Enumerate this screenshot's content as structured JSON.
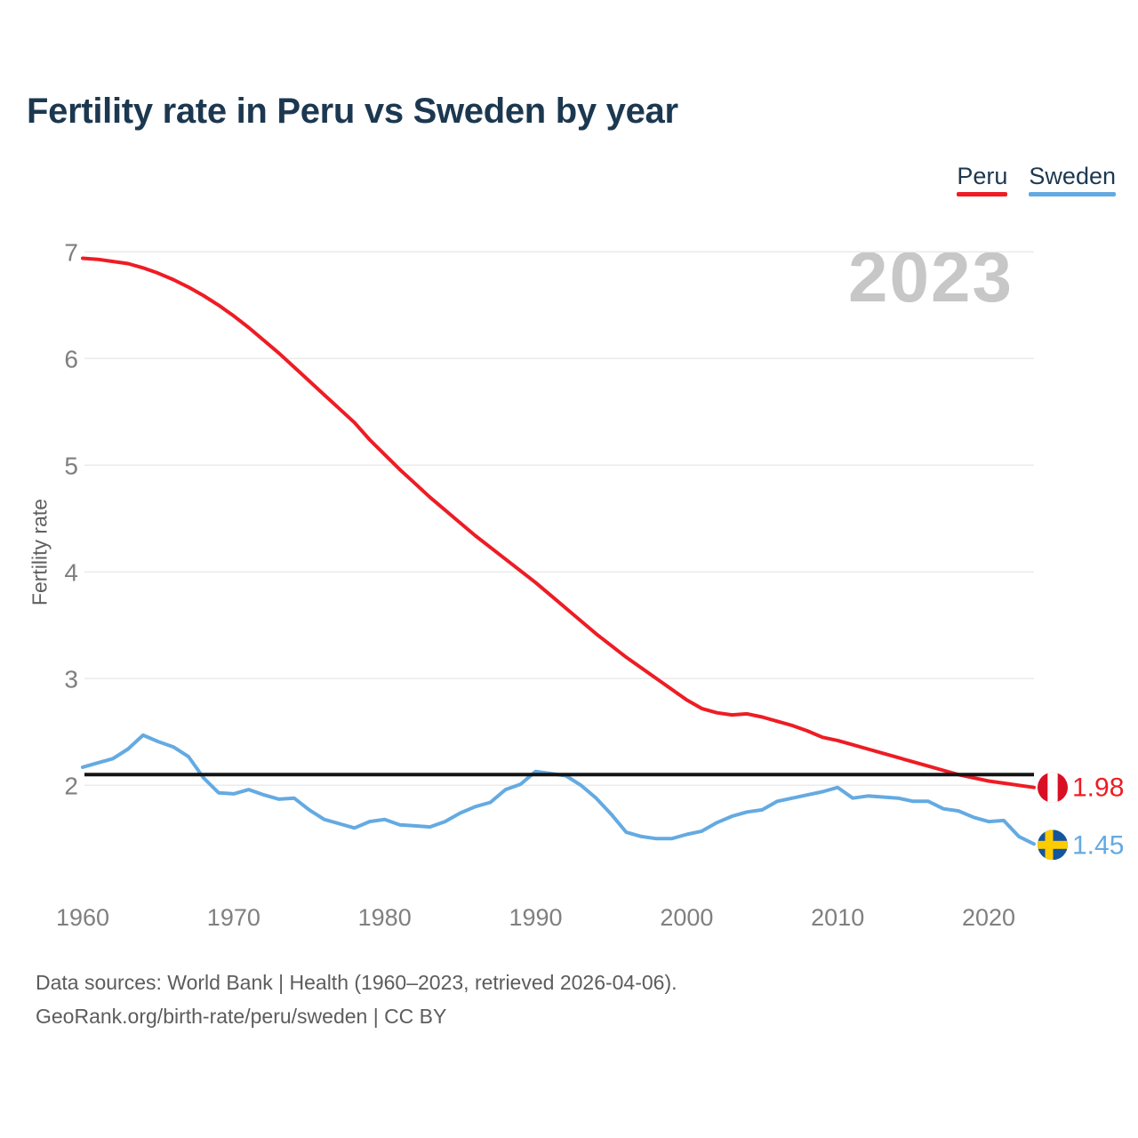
{
  "title": "Fertility rate in Peru vs Sweden by year",
  "watermark": "2023",
  "legend": {
    "items": [
      {
        "label": "Peru",
        "color": "#ee1c24"
      },
      {
        "label": "Sweden",
        "color": "#64aae2"
      }
    ]
  },
  "y_axis": {
    "label": "Fertility rate",
    "ticks": [
      2,
      3,
      4,
      5,
      6,
      7
    ]
  },
  "x_axis": {
    "ticks": [
      1960,
      1970,
      1980,
      1990,
      2000,
      2010,
      2020
    ]
  },
  "footer": {
    "line1": "Data sources: World Bank | Health (1960–2023, retrieved 2026-04-06).",
    "line2": "GeoRank.org/birth-rate/peru/sweden | CC BY"
  },
  "chart_data": {
    "type": "line",
    "title": "Fertility rate in Peru vs Sweden by year",
    "xlabel": "",
    "ylabel": "Fertility rate",
    "xlim": [
      1960,
      2023
    ],
    "ylim": [
      1,
      7
    ],
    "grid": "horizontal-only",
    "legend_position": "top-right",
    "reference_line": {
      "value": 2.1,
      "color": "#141414",
      "meaning": "drawn as plain black horizontal rule"
    },
    "x": [
      1960,
      1961,
      1962,
      1963,
      1964,
      1965,
      1966,
      1967,
      1968,
      1969,
      1970,
      1971,
      1972,
      1973,
      1974,
      1975,
      1976,
      1977,
      1978,
      1979,
      1980,
      1981,
      1982,
      1983,
      1984,
      1985,
      1986,
      1987,
      1988,
      1989,
      1990,
      1991,
      1992,
      1993,
      1994,
      1995,
      1996,
      1997,
      1998,
      1999,
      2000,
      2001,
      2002,
      2003,
      2004,
      2005,
      2006,
      2007,
      2008,
      2009,
      2010,
      2011,
      2012,
      2013,
      2014,
      2015,
      2016,
      2017,
      2018,
      2019,
      2020,
      2021,
      2022,
      2023
    ],
    "series": [
      {
        "name": "Peru",
        "color": "#ee1c24",
        "end_label": "1.98",
        "flag": {
          "type": "peru",
          "red": "#d91023",
          "white": "#ffffff"
        },
        "values": [
          6.94,
          6.93,
          6.91,
          6.89,
          6.85,
          6.8,
          6.74,
          6.67,
          6.59,
          6.5,
          6.4,
          6.29,
          6.17,
          6.05,
          5.92,
          5.79,
          5.66,
          5.53,
          5.4,
          5.24,
          5.1,
          4.96,
          4.83,
          4.7,
          4.58,
          4.46,
          4.34,
          4.23,
          4.12,
          4.01,
          3.9,
          3.78,
          3.66,
          3.54,
          3.42,
          3.31,
          3.2,
          3.1,
          3.0,
          2.9,
          2.8,
          2.72,
          2.68,
          2.66,
          2.67,
          2.64,
          2.6,
          2.56,
          2.51,
          2.45,
          2.42,
          2.38,
          2.34,
          2.3,
          2.26,
          2.22,
          2.18,
          2.14,
          2.1,
          2.07,
          2.04,
          2.02,
          2.0,
          1.98
        ]
      },
      {
        "name": "Sweden",
        "color": "#64aae2",
        "end_label": "1.45",
        "flag": {
          "type": "sweden",
          "blue": "#15559e",
          "yellow": "#fecb00"
        },
        "values": [
          2.17,
          2.21,
          2.25,
          2.34,
          2.47,
          2.41,
          2.36,
          2.27,
          2.07,
          1.93,
          1.92,
          1.96,
          1.91,
          1.87,
          1.88,
          1.77,
          1.68,
          1.64,
          1.6,
          1.66,
          1.68,
          1.63,
          1.62,
          1.61,
          1.66,
          1.74,
          1.8,
          1.84,
          1.96,
          2.01,
          2.13,
          2.11,
          2.09,
          2.0,
          1.88,
          1.73,
          1.56,
          1.52,
          1.5,
          1.5,
          1.54,
          1.57,
          1.65,
          1.71,
          1.75,
          1.77,
          1.85,
          1.88,
          1.91,
          1.94,
          1.98,
          1.88,
          1.9,
          1.89,
          1.88,
          1.85,
          1.85,
          1.78,
          1.76,
          1.7,
          1.66,
          1.67,
          1.52,
          1.45
        ]
      }
    ]
  },
  "theme": {
    "title_color": "#1c3850",
    "tick_color": "#7f7f7f",
    "grid_color": "#ebebeb",
    "watermark_color": "#c7c7c7",
    "footer_color": "#5c5c5c",
    "background": "#ffffff"
  }
}
